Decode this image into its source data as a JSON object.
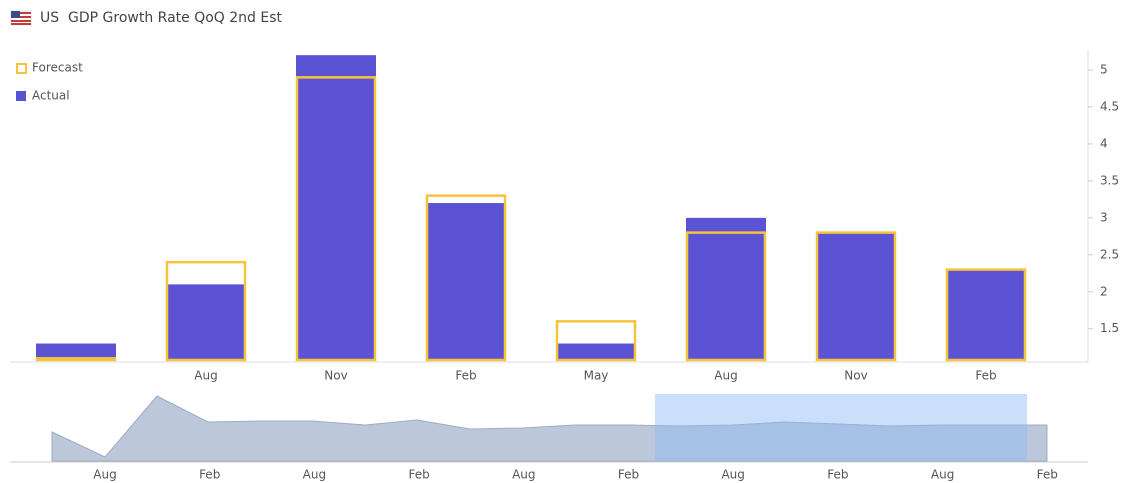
{
  "header": {
    "country": "US",
    "title": "GDP Growth Rate QoQ 2nd Est"
  },
  "chart_data": {
    "type": "bar",
    "categories": [
      null,
      "Aug",
      "Nov",
      "Feb",
      "May",
      "Aug",
      "Nov",
      "Feb"
    ],
    "series": [
      {
        "name": "Forecast",
        "color": "#f5c43a",
        "style": "outline",
        "values": [
          1.1,
          2.4,
          4.9,
          3.3,
          1.6,
          2.8,
          2.8,
          2.3
        ]
      },
      {
        "name": "Actual",
        "color": "#5b53d3",
        "style": "filled",
        "values": [
          1.3,
          2.1,
          5.2,
          3.2,
          1.3,
          3.0,
          2.8,
          2.3
        ]
      }
    ],
    "ylim": [
      1.05,
      5.27
    ],
    "yticks": [
      1.5,
      2,
      2.5,
      3,
      3.5,
      4,
      4.5,
      5
    ],
    "y_axis_side": "right",
    "legend": "top-left"
  },
  "navigator": {
    "labels": [
      "Aug",
      "Feb",
      "Aug",
      "Feb",
      "Aug",
      "Feb",
      "Aug",
      "Feb",
      "Aug",
      "Feb"
    ]
  }
}
